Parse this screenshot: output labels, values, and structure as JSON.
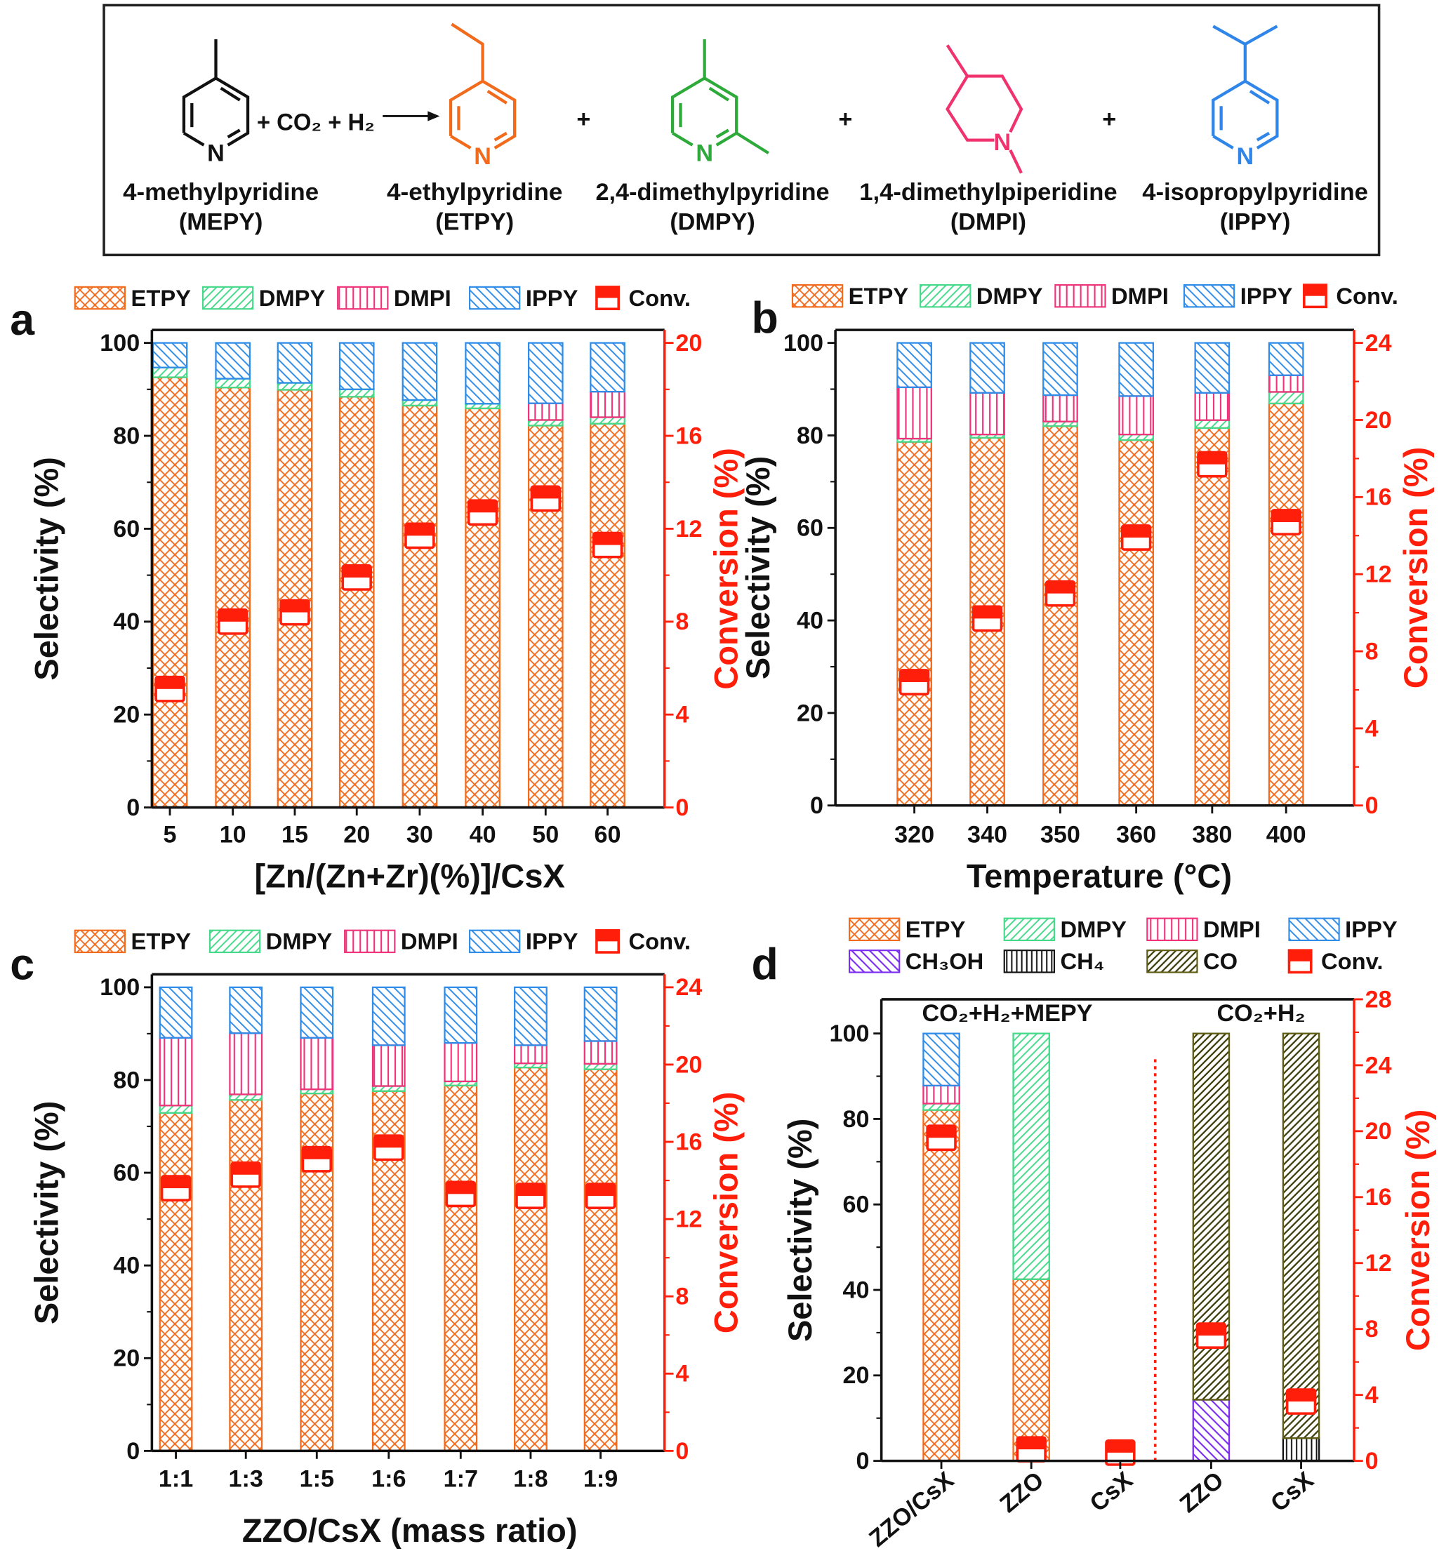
{
  "scheme": {
    "reactant": {
      "name": "4-methylpyridine",
      "abbr": "(MEPY)",
      "color": "#111111"
    },
    "reagents": "+ CO₂ + H₂",
    "atom_label": "N",
    "plus": "+",
    "products": [
      {
        "name": "4-ethylpyridine",
        "abbr": "(ETPY)",
        "color": "#F26B1D"
      },
      {
        "name": "2,4-dimethylpyridine",
        "abbr": "(DMPY)",
        "color": "#2DAA3A"
      },
      {
        "name": "1,4-dimethylpiperidine",
        "abbr": "(DMPI)",
        "color": "#F0336E"
      },
      {
        "name": "4-isopropylpyridine",
        "abbr": "(IPPY)",
        "color": "#2F86E8"
      }
    ]
  },
  "chart_data": [
    {
      "panel": "a",
      "type": "bar",
      "stacked": true,
      "categories": [
        "5",
        "10",
        "15",
        "20",
        "30",
        "40",
        "50",
        "60"
      ],
      "xlabel": "[Zn/(Zn+Zr)(%)]/CsX",
      "ylabel": "Selectivity (%)",
      "y2label": "Conversion (%)",
      "ylim": [
        0,
        100
      ],
      "y2lim": [
        0,
        20
      ],
      "yticks": [
        "0",
        "20",
        "40",
        "60",
        "80",
        "100"
      ],
      "y2ticks": [
        "0",
        "4",
        "8",
        "12",
        "16",
        "20"
      ],
      "series": [
        {
          "name": "ETPY",
          "color": "#F26B1D",
          "values": [
            92.6,
            90.4,
            89.9,
            88.4,
            86.5,
            85.9,
            82.2,
            82.6
          ]
        },
        {
          "name": "DMPY",
          "color": "#45D98A",
          "values": [
            2.1,
            1.9,
            1.5,
            1.6,
            1.2,
            1.0,
            1.2,
            1.4
          ]
        },
        {
          "name": "DMPI",
          "color": "#F0337A",
          "values": [
            0,
            0,
            0,
            0,
            0,
            0,
            3.6,
            5.5
          ]
        },
        {
          "name": "IPPY",
          "color": "#2F8CE8",
          "values": [
            5.3,
            7.7,
            8.6,
            10.0,
            12.3,
            13.1,
            13.0,
            10.5
          ]
        }
      ],
      "conversion": {
        "name": "Conv.",
        "color": "#FF1E0A",
        "values": [
          5.1,
          8.0,
          8.4,
          9.9,
          11.7,
          12.7,
          13.3,
          11.3
        ]
      },
      "legend": "top"
    },
    {
      "panel": "b",
      "type": "bar",
      "stacked": true,
      "categories": [
        "320",
        "340",
        "350",
        "360",
        "380",
        "400"
      ],
      "xlabel": "Temperature (°C)",
      "ylabel": "Selectivity (%)",
      "y2label": "Conversion (%)",
      "ylim": [
        0,
        100
      ],
      "y2lim": [
        0,
        24
      ],
      "yticks": [
        "0",
        "20",
        "40",
        "60",
        "80",
        "100"
      ],
      "y2ticks": [
        "0",
        "4",
        "8",
        "12",
        "16",
        "20",
        "24"
      ],
      "series": [
        {
          "name": "ETPY",
          "color": "#F26B1D",
          "values": [
            78.6,
            79.5,
            82.0,
            79.0,
            81.6,
            86.9
          ]
        },
        {
          "name": "DMPY",
          "color": "#45D98A",
          "values": [
            0.7,
            0.7,
            1.0,
            1.2,
            1.7,
            2.5
          ]
        },
        {
          "name": "DMPI",
          "color": "#F0337A",
          "values": [
            11.1,
            9.0,
            5.7,
            8.3,
            5.9,
            3.6
          ]
        },
        {
          "name": "IPPY",
          "color": "#2F8CE8",
          "values": [
            9.6,
            10.8,
            11.3,
            11.5,
            10.8,
            7.0
          ]
        }
      ],
      "conversion": {
        "name": "Conv.",
        "color": "#FF1E0A",
        "values": [
          6.4,
          9.7,
          11.0,
          13.9,
          17.7,
          14.7
        ]
      },
      "legend": "top"
    },
    {
      "panel": "c",
      "type": "bar",
      "stacked": true,
      "categories": [
        "1:1",
        "1:3",
        "1:5",
        "1:6",
        "1:7",
        "1:8",
        "1:9"
      ],
      "xlabel": "ZZO/CsX (mass ratio)",
      "ylabel": "Selectivity (%)",
      "y2label": "Conversion (%)",
      "ylim": [
        0,
        100
      ],
      "y2lim": [
        0,
        24
      ],
      "yticks": [
        "0",
        "20",
        "40",
        "60",
        "80",
        "100"
      ],
      "y2ticks": [
        "0",
        "4",
        "8",
        "12",
        "16",
        "20",
        "24"
      ],
      "series": [
        {
          "name": "ETPY",
          "color": "#F26B1D",
          "values": [
            72.9,
            75.7,
            77.1,
            77.6,
            78.8,
            82.7,
            82.3
          ]
        },
        {
          "name": "DMPY",
          "color": "#45D98A",
          "values": [
            1.6,
            1.2,
            0.9,
            1.1,
            0.9,
            0.9,
            1.2
          ]
        },
        {
          "name": "DMPI",
          "color": "#F0337A",
          "values": [
            14.6,
            13.2,
            11.1,
            8.8,
            8.3,
            3.9,
            4.9
          ]
        },
        {
          "name": "IPPY",
          "color": "#2F8CE8",
          "values": [
            10.9,
            9.9,
            10.9,
            12.5,
            12.0,
            12.5,
            11.6
          ]
        }
      ],
      "conversion": {
        "name": "Conv.",
        "color": "#FF1E0A",
        "values": [
          13.6,
          14.3,
          15.1,
          15.7,
          13.3,
          13.2,
          13.2
        ]
      },
      "legend": "top"
    },
    {
      "panel": "d",
      "type": "bar",
      "stacked": true,
      "categories": [
        "ZZO/CsX",
        "ZZO",
        "CsX",
        "ZZO",
        "CsX"
      ],
      "groups": [
        {
          "label": "CO₂+H₂+MEPY"
        },
        {
          "label": "CO₂+H₂"
        }
      ],
      "xlabel": "",
      "ylabel": "Selectivity (%)",
      "y2label": "Conversion (%)",
      "ylim": [
        0,
        108
      ],
      "y2lim": [
        0,
        28
      ],
      "yticks": [
        "0",
        "20",
        "40",
        "60",
        "80",
        "100"
      ],
      "y2ticks": [
        "0",
        "4",
        "8",
        "12",
        "16",
        "20",
        "24",
        "28"
      ],
      "series": [
        {
          "name": "ETPY",
          "color": "#F26B1D",
          "values": [
            82.1,
            42.5,
            0,
            0,
            0
          ]
        },
        {
          "name": "DMPY",
          "color": "#45D98A",
          "values": [
            1.5,
            57.5,
            0,
            0,
            0
          ]
        },
        {
          "name": "DMPI",
          "color": "#F0337A",
          "values": [
            4.2,
            0,
            0,
            0,
            0
          ]
        },
        {
          "name": "IPPY",
          "color": "#2F8CE8",
          "values": [
            12.2,
            0,
            0,
            0,
            0
          ]
        },
        {
          "name": "CH₃OH",
          "color": "#7A2CF0",
          "values": [
            0,
            0,
            0,
            14.3,
            0
          ]
        },
        {
          "name": "CH₄",
          "color": "#111111",
          "values": [
            0,
            0,
            0,
            0,
            5.3
          ]
        },
        {
          "name": "CO",
          "color": "#5E5C12",
          "values": [
            0,
            0,
            0,
            85.7,
            94.7
          ]
        }
      ],
      "conversion": {
        "name": "Conv.",
        "color": "#FF1E0A",
        "values": [
          19.6,
          0.7,
          0.5,
          7.6,
          3.6
        ]
      },
      "legend": "top"
    }
  ]
}
